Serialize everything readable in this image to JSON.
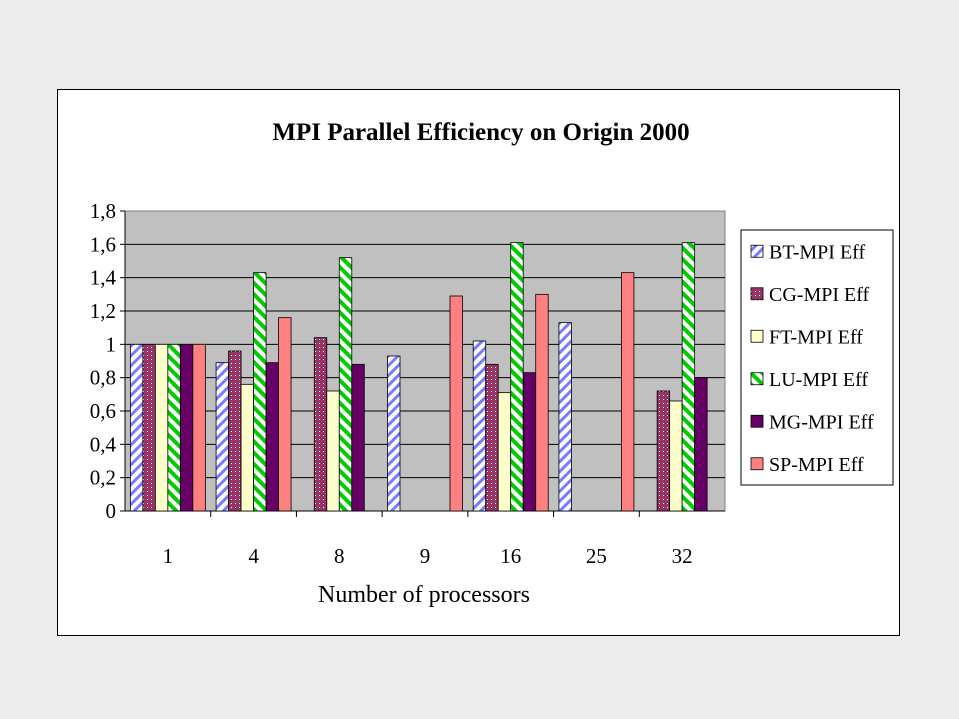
{
  "chart_data": {
    "type": "bar",
    "title": "MPI Parallel Efficiency on Origin 2000",
    "xlabel": "Number of processors",
    "ylabel": "",
    "categories": [
      "1",
      "4",
      "8",
      "9",
      "16",
      "25",
      "32"
    ],
    "ylim": [
      0,
      1.8
    ],
    "yticks": [
      "0",
      "0,2",
      "0,4",
      "0,6",
      "0,8",
      "1",
      "1,2",
      "1,4",
      "1,6",
      "1,8"
    ],
    "grid": true,
    "legend_position": "right",
    "plot_background": "#c0c0c0",
    "series": [
      {
        "name": "BT-MPI Eff",
        "color": "#9999ff",
        "pattern": "diagonal",
        "values": [
          1.0,
          0.89,
          null,
          0.93,
          1.02,
          1.13,
          null
        ]
      },
      {
        "name": "CG-MPI Eff",
        "color": "#993366",
        "pattern": "dotted",
        "values": [
          1.0,
          0.96,
          1.04,
          null,
          0.88,
          null,
          0.72
        ]
      },
      {
        "name": "FT-MPI Eff",
        "color": "#ffffcc",
        "pattern": "solid",
        "values": [
          1.0,
          0.76,
          0.72,
          null,
          0.71,
          null,
          0.66
        ]
      },
      {
        "name": "LU-MPI Eff",
        "color": "#00cc00",
        "pattern": "zigzag",
        "values": [
          1.0,
          1.43,
          1.52,
          null,
          1.61,
          null,
          1.61
        ]
      },
      {
        "name": "MG-MPI Eff",
        "color": "#660066",
        "pattern": "solid",
        "values": [
          1.0,
          0.89,
          0.88,
          null,
          0.83,
          null,
          0.8
        ]
      },
      {
        "name": "SP-MPI Eff",
        "color": "#ff8080",
        "pattern": "solid",
        "values": [
          1.0,
          1.16,
          null,
          1.29,
          1.3,
          1.43,
          null
        ]
      }
    ]
  }
}
